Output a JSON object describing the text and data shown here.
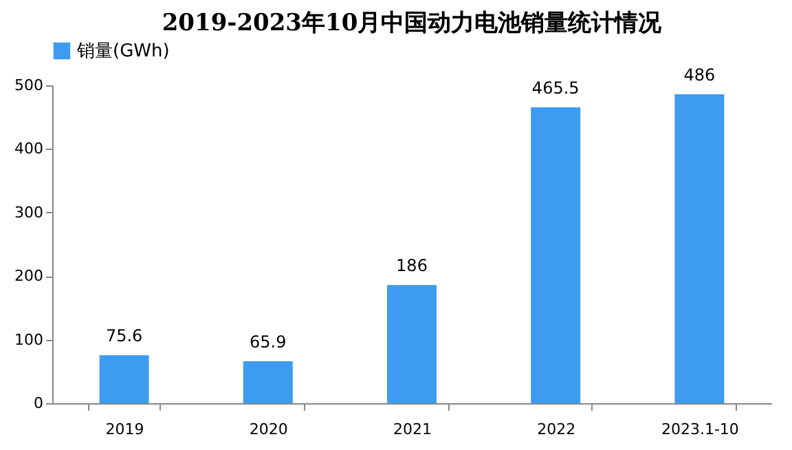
{
  "chart_data": {
    "type": "bar",
    "title": "2019-2023年10月中国动力电池销量统计情况",
    "categories": [
      "2019",
      "2020",
      "2021",
      "2022",
      "2023.1-10"
    ],
    "series": [
      {
        "name": "销量(GWh)",
        "color": "#3d9cf0",
        "values": [
          75.6,
          65.9,
          186,
          465.5,
          486
        ]
      }
    ],
    "ylim": [
      0,
      500
    ],
    "yticks": [
      0,
      100,
      200,
      300,
      400,
      500
    ],
    "grid": false,
    "legend": "top",
    "data_labels": true
  }
}
